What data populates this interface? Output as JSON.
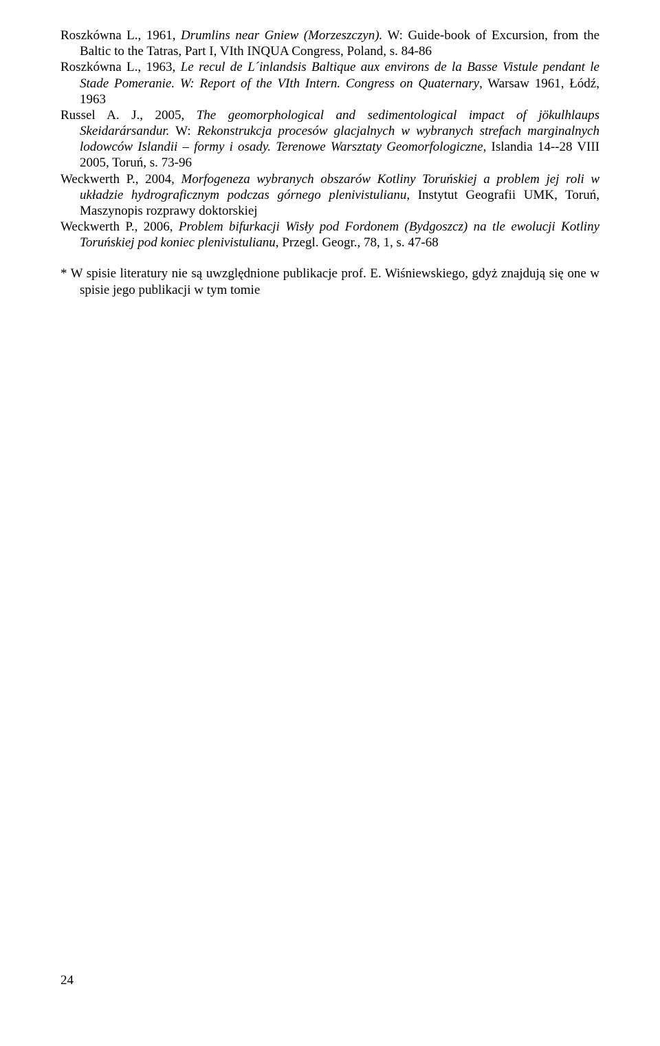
{
  "refs": [
    {
      "prefix": "Roszkówna L., 1961, ",
      "title_it": "Drumlins near Gniew (Morzeszczyn).",
      "mid": " W: Guide-book of Excursion, from the Baltic to the Tatras, Part I, VIth INQUA Congress, Poland, s. 84-86"
    },
    {
      "prefix": "Roszkówna L., 1963, ",
      "title_it": "Le recul de L´inlandsis Baltique aux environs de la Basse Vistule pendant le Stade Pomeranie. W: Report of the VIth Intern. Congress on Quaternary",
      "mid": ", Warsaw 1961, Łódź, 1963"
    },
    {
      "prefix": "Russel A. J., 2005, ",
      "title_it": "The geomorphological and sedimentological impact of jökulhlaups Skeidarársandur.",
      "mid": " W: ",
      "title_it2": "Rekonstrukcja procesów glacjalnych w wybranych strefach marginalnych lodowców Islandii – formy i osady. Terenowe Warsztaty Geomorfologiczne",
      "tail": ", Islandia 14-​-28 VIII 2005, Toruń, s. 73-96"
    },
    {
      "prefix": "Weckwerth P., 2004, ",
      "title_it": "Morfogeneza wybranych obszarów Kotliny Toruńskiej a problem jej roli w układzie hydrograficznym podczas górnego plenivistulianu",
      "mid": ", Instytut Geografii UMK, Toruń, Maszynopis rozprawy doktorskiej"
    },
    {
      "prefix": "Weckwerth P., 2006, ",
      "title_it": "Problem bifurkacji Wisły pod Fordonem (Bydgoszcz) na tle ewolucji Kotliny Toruńskiej pod koniec plenivistulianu",
      "mid": ", Przegl. Geogr., 78, 1, s. 47-68"
    }
  ],
  "footnote": "* W spisie literatury nie są uwzględnione publikacje prof. E. Wiśniewskiego, gdyż znajdują się one w spisie jego publikacji w tym tomie",
  "page_number": "24"
}
